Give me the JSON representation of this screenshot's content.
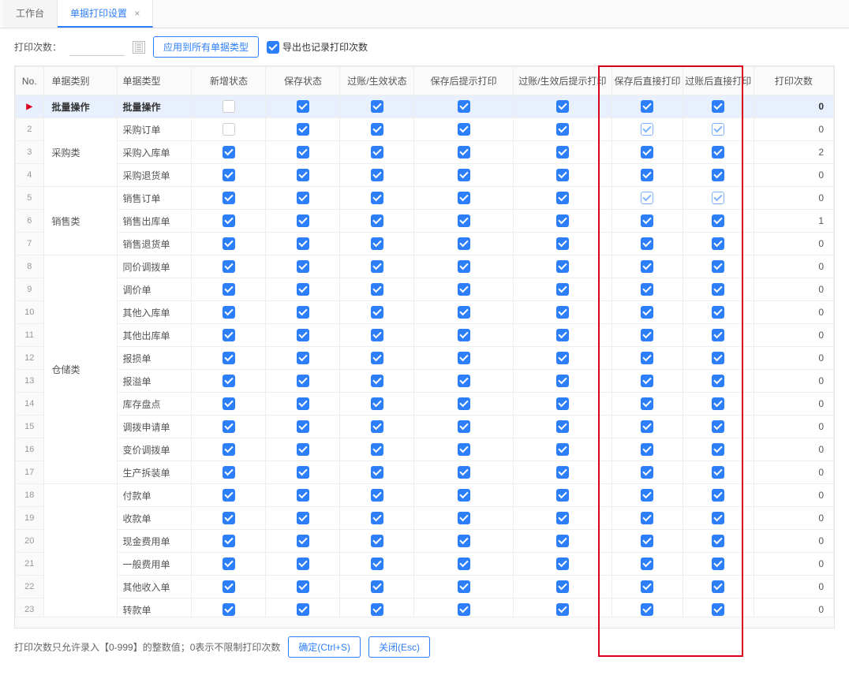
{
  "tabs": {
    "workbench": "工作台",
    "active": "单据打印设置"
  },
  "toolbar": {
    "print_count_label": "打印次数：",
    "apply_all_label": "应用到所有单据类型",
    "export_log_label": "导出也记录打印次数"
  },
  "headers": [
    "No.",
    "单据类别",
    "单据类型",
    "新增状态",
    "保存状态",
    "过账/生效状态",
    "保存后提示打印",
    "过账/生效后提示打印",
    "保存后直接打印",
    "过账后直接打印",
    "打印次数"
  ],
  "footer": {
    "hint": "打印次数只允许录入【0-999】的整数值；0表示不限制打印次数",
    "confirm": "确定(Ctrl+S)",
    "close": "关闭(Esc)"
  },
  "cb": {
    "c": "checked",
    "e": "empty",
    "l": "light"
  },
  "rows": [
    {
      "no": "▶",
      "cat": "批量操作",
      "type": "批量操作",
      "batch": true,
      "c": [
        "e",
        "c",
        "c",
        "c",
        "c",
        "c",
        "c"
      ],
      "cnt": "0"
    },
    {
      "no": "2",
      "cat": "采购类",
      "catspan": 3,
      "type": "采购订单",
      "c": [
        "e",
        "c",
        "c",
        "c",
        "c",
        "l",
        "l"
      ],
      "cnt": "0"
    },
    {
      "no": "3",
      "type": "采购入库单",
      "c": [
        "c",
        "c",
        "c",
        "c",
        "c",
        "c",
        "c"
      ],
      "cnt": "2"
    },
    {
      "no": "4",
      "type": "采购退货单",
      "c": [
        "c",
        "c",
        "c",
        "c",
        "c",
        "c",
        "c"
      ],
      "cnt": "0"
    },
    {
      "no": "5",
      "cat": "销售类",
      "catspan": 3,
      "type": "销售订单",
      "c": [
        "c",
        "c",
        "c",
        "c",
        "c",
        "l",
        "l"
      ],
      "cnt": "0"
    },
    {
      "no": "6",
      "type": "销售出库单",
      "c": [
        "c",
        "c",
        "c",
        "c",
        "c",
        "c",
        "c"
      ],
      "cnt": "1"
    },
    {
      "no": "7",
      "type": "销售退货单",
      "c": [
        "c",
        "c",
        "c",
        "c",
        "c",
        "c",
        "c"
      ],
      "cnt": "0"
    },
    {
      "no": "8",
      "cat": "仓储类",
      "catspan": 10,
      "type": "同价调拨单",
      "c": [
        "c",
        "c",
        "c",
        "c",
        "c",
        "c",
        "c"
      ],
      "cnt": "0"
    },
    {
      "no": "9",
      "type": "调价单",
      "c": [
        "c",
        "c",
        "c",
        "c",
        "c",
        "c",
        "c"
      ],
      "cnt": "0"
    },
    {
      "no": "10",
      "type": "其他入库单",
      "c": [
        "c",
        "c",
        "c",
        "c",
        "c",
        "c",
        "c"
      ],
      "cnt": "0"
    },
    {
      "no": "11",
      "type": "其他出库单",
      "c": [
        "c",
        "c",
        "c",
        "c",
        "c",
        "c",
        "c"
      ],
      "cnt": "0"
    },
    {
      "no": "12",
      "type": "报损单",
      "c": [
        "c",
        "c",
        "c",
        "c",
        "c",
        "c",
        "c"
      ],
      "cnt": "0"
    },
    {
      "no": "13",
      "type": "报溢单",
      "c": [
        "c",
        "c",
        "c",
        "c",
        "c",
        "c",
        "c"
      ],
      "cnt": "0"
    },
    {
      "no": "14",
      "type": "库存盘点",
      "c": [
        "c",
        "c",
        "c",
        "c",
        "c",
        "c",
        "c"
      ],
      "cnt": "0"
    },
    {
      "no": "15",
      "type": "调拨申请单",
      "c": [
        "c",
        "c",
        "c",
        "c",
        "c",
        "c",
        "c"
      ],
      "cnt": "0"
    },
    {
      "no": "16",
      "type": "变价调拨单",
      "c": [
        "c",
        "c",
        "c",
        "c",
        "c",
        "c",
        "c"
      ],
      "cnt": "0"
    },
    {
      "no": "17",
      "type": "生产拆装单",
      "c": [
        "c",
        "c",
        "c",
        "c",
        "c",
        "c",
        "c"
      ],
      "cnt": "0"
    },
    {
      "no": "18",
      "cat": "",
      "catspan": 6,
      "type": "付款单",
      "c": [
        "c",
        "c",
        "c",
        "c",
        "c",
        "c",
        "c"
      ],
      "cnt": "0"
    },
    {
      "no": "19",
      "type": "收款单",
      "c": [
        "c",
        "c",
        "c",
        "c",
        "c",
        "c",
        "c"
      ],
      "cnt": "0"
    },
    {
      "no": "20",
      "type": "现金费用单",
      "c": [
        "c",
        "c",
        "c",
        "c",
        "c",
        "c",
        "c"
      ],
      "cnt": "0"
    },
    {
      "no": "21",
      "type": "一般费用单",
      "c": [
        "c",
        "c",
        "c",
        "c",
        "c",
        "c",
        "c"
      ],
      "cnt": "0"
    },
    {
      "no": "22",
      "type": "其他收入单",
      "c": [
        "c",
        "c",
        "c",
        "c",
        "c",
        "c",
        "c"
      ],
      "cnt": "0"
    },
    {
      "no": "23",
      "type": "转款单",
      "c": [
        "c",
        "c",
        "c",
        "c",
        "c",
        "c",
        "c"
      ],
      "cnt": "0"
    }
  ]
}
